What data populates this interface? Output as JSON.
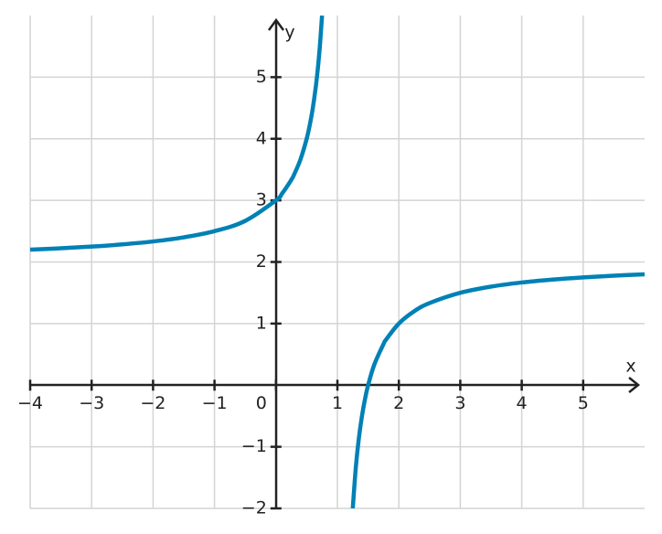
{
  "chart_data": {
    "type": "line",
    "x_label": "x",
    "y_label": "y",
    "x": [
      -4,
      -3.5,
      -3,
      -2.5,
      -2,
      -1.5,
      -1,
      -0.5,
      0,
      0.1,
      0.25,
      0.3,
      0.4,
      0.5,
      0.55,
      0.6,
      0.65,
      0.68,
      0.7,
      0.72,
      0.75,
      null,
      1.25,
      1.3,
      1.35,
      1.4,
      1.45,
      1.5,
      1.6,
      1.75,
      1.8,
      2,
      2.25,
      2.5,
      3,
      3.5,
      4,
      4.5,
      5,
      5.5,
      6
    ],
    "series": [
      {
        "color": "#0081b6",
        "values": [
          2.2,
          2.222,
          2.25,
          2.286,
          2.333,
          2.4,
          2.5,
          2.667,
          3,
          3.111,
          3.333,
          3.429,
          3.667,
          4,
          4.222,
          4.5,
          4.857,
          5.125,
          5.333,
          5.571,
          6,
          null,
          -2,
          -1.333,
          -0.857,
          -0.5,
          -0.222,
          0,
          0.333,
          0.667,
          0.75,
          1,
          1.2,
          1.333,
          1.5,
          1.6,
          1.667,
          1.714,
          1.75,
          1.778,
          1.8
        ]
      }
    ],
    "xlim": [
      -4,
      6
    ],
    "ylim": [
      -2,
      6
    ],
    "xticks": [
      {
        "value": -4,
        "label": "−4"
      },
      {
        "value": -3,
        "label": "−3"
      },
      {
        "value": -2,
        "label": "−2"
      },
      {
        "value": -1,
        "label": "−1"
      },
      0,
      1,
      2,
      3,
      4,
      5
    ],
    "yticks": [
      {
        "value": -2,
        "label": "−2"
      },
      {
        "value": -1,
        "label": "−1"
      },
      1,
      2,
      3,
      4,
      5
    ],
    "grid": true
  }
}
